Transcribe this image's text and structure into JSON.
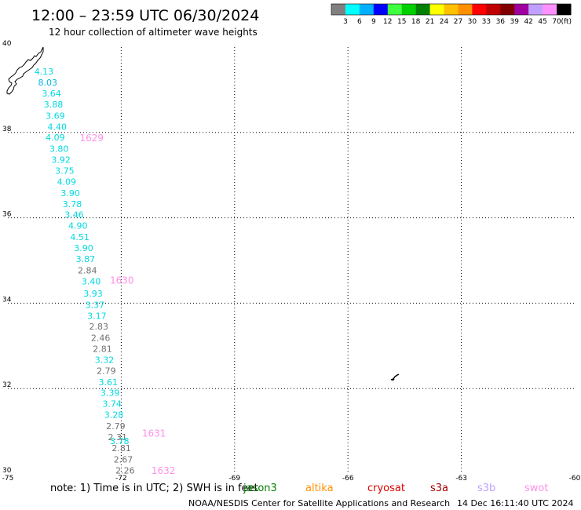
{
  "header": {
    "title": "12:00 – 23:59 UTC 06/30/2024",
    "subtitle": "12 hour collection of altimeter wave heights"
  },
  "legend": {
    "ticks": [
      "3",
      "6",
      "9",
      "12",
      "15",
      "18",
      "21",
      "24",
      "27",
      "30",
      "33",
      "36",
      "39",
      "42",
      "45",
      "70"
    ],
    "unit": "(ft)",
    "colors": [
      "#808080",
      "#00ffff",
      "#00b0ff",
      "#0000ff",
      "#40ff40",
      "#00d000",
      "#008000",
      "#ffff00",
      "#ffc000",
      "#ff9000",
      "#ff0000",
      "#c00000",
      "#800000",
      "#a000a0",
      "#c0a0ff",
      "#ff90ff",
      "#000000"
    ]
  },
  "map": {
    "lon_min": -75,
    "lon_max": -60,
    "lat_min": 30,
    "lat_max": 40,
    "lon_ticks": [
      "-75",
      "-72",
      "-69",
      "-66",
      "-63",
      "-60"
    ],
    "lon_tick_values": [
      -75,
      -72,
      -69,
      -66,
      -63,
      -60
    ],
    "lat_ticks": [
      "40",
      "38",
      "36",
      "34",
      "32",
      "30"
    ],
    "lat_tick_values": [
      40,
      38,
      36,
      34,
      32,
      30
    ],
    "observations": [
      {
        "text": "4.13",
        "lon": -74.3,
        "lat": 39.36,
        "color": "#00d8e0"
      },
      {
        "text": "8.03",
        "lon": -74.2,
        "lat": 39.1,
        "color": "#00b8e0"
      },
      {
        "text": "3.64",
        "lon": -74.1,
        "lat": 38.84,
        "color": "#00d8e0"
      },
      {
        "text": "3.88",
        "lon": -74.05,
        "lat": 38.58,
        "color": "#00d8e0"
      },
      {
        "text": "3.69",
        "lon": -74.0,
        "lat": 38.32,
        "color": "#00d8e0"
      },
      {
        "text": "4.40",
        "lon": -73.95,
        "lat": 38.06,
        "color": "#00d8e0"
      },
      {
        "text": "4.09",
        "lon": -74.0,
        "lat": 37.81,
        "color": "#00d8e0"
      },
      {
        "text": "3.80",
        "lon": -73.9,
        "lat": 37.55,
        "color": "#00d8e0"
      },
      {
        "text": "3.92",
        "lon": -73.85,
        "lat": 37.29,
        "color": "#00d8e0"
      },
      {
        "text": "3.75",
        "lon": -73.75,
        "lat": 37.03,
        "color": "#00d8e0"
      },
      {
        "text": "4.09",
        "lon": -73.7,
        "lat": 36.77,
        "color": "#00d8e0"
      },
      {
        "text": "3.90",
        "lon": -73.6,
        "lat": 36.51,
        "color": "#00d8e0"
      },
      {
        "text": "3.78",
        "lon": -73.55,
        "lat": 36.25,
        "color": "#00d8e0"
      },
      {
        "text": "3.46",
        "lon": -73.5,
        "lat": 36.0,
        "color": "#00d8e0"
      },
      {
        "text": "4.90",
        "lon": -73.4,
        "lat": 35.74,
        "color": "#00d8e0"
      },
      {
        "text": "4.51",
        "lon": -73.35,
        "lat": 35.48,
        "color": "#00d8e0"
      },
      {
        "text": "3.90",
        "lon": -73.25,
        "lat": 35.22,
        "color": "#00d8e0"
      },
      {
        "text": "3.87",
        "lon": -73.2,
        "lat": 34.96,
        "color": "#00d8e0"
      },
      {
        "text": "2.84",
        "lon": -73.15,
        "lat": 34.7,
        "color": "#707070"
      },
      {
        "text": "3.40",
        "lon": -73.05,
        "lat": 34.44,
        "color": "#00d8e0"
      },
      {
        "text": "3.93",
        "lon": -73.0,
        "lat": 34.15,
        "color": "#00d8e0"
      },
      {
        "text": "3.37",
        "lon": -72.95,
        "lat": 33.89,
        "color": "#00d8e0"
      },
      {
        "text": "3.17",
        "lon": -72.9,
        "lat": 33.63,
        "color": "#00d8e0"
      },
      {
        "text": "2.83",
        "lon": -72.85,
        "lat": 33.38,
        "color": "#707070"
      },
      {
        "text": "2.46",
        "lon": -72.8,
        "lat": 33.12,
        "color": "#707070"
      },
      {
        "text": "2.81",
        "lon": -72.75,
        "lat": 32.86,
        "color": "#707070"
      },
      {
        "text": "3.32",
        "lon": -72.7,
        "lat": 32.6,
        "color": "#00d8e0"
      },
      {
        "text": "2.79",
        "lon": -72.65,
        "lat": 32.34,
        "color": "#707070"
      },
      {
        "text": "3.61",
        "lon": -72.6,
        "lat": 32.08,
        "color": "#00d8e0"
      },
      {
        "text": "3.39",
        "lon": -72.55,
        "lat": 31.83,
        "color": "#00d8e0"
      },
      {
        "text": "3.74",
        "lon": -72.5,
        "lat": 31.57,
        "color": "#00d8e0"
      },
      {
        "text": "3.28",
        "lon": -72.45,
        "lat": 31.31,
        "color": "#00d8e0"
      },
      {
        "text": "2.79",
        "lon": -72.4,
        "lat": 31.05,
        "color": "#707070"
      },
      {
        "text": "2.31",
        "lon": -72.35,
        "lat": 30.79,
        "color": "#707070"
      },
      {
        "text": "3.78",
        "lon": -72.3,
        "lat": 30.7,
        "color": "#00d8e0"
      },
      {
        "text": "2.81",
        "lon": -72.25,
        "lat": 30.53,
        "color": "#707070"
      },
      {
        "text": "2.67",
        "lon": -72.2,
        "lat": 30.27,
        "color": "#707070"
      },
      {
        "text": "2.26",
        "lon": -72.15,
        "lat": 30.01,
        "color": "#707070"
      }
    ],
    "pass_labels": [
      {
        "text": "1629",
        "lon": -73.1,
        "lat": 37.79,
        "color": "#ff90e8"
      },
      {
        "text": "1630",
        "lon": -72.3,
        "lat": 34.46,
        "color": "#ff90e8"
      },
      {
        "text": "1631",
        "lon": -71.45,
        "lat": 30.87,
        "color": "#ff90e8"
      },
      {
        "text": "1632",
        "lon": -71.2,
        "lat": 30.0,
        "color": "#ff90e8"
      }
    ]
  },
  "footer": {
    "note": "note:  1) Time is in UTC; 2) SWH is in feet",
    "satellites": [
      {
        "name": "jason3",
        "color": "#008000"
      },
      {
        "name": "altika",
        "color": "#ff9000"
      },
      {
        "name": "cryosat",
        "color": "#e00000"
      },
      {
        "name": "s3a",
        "color": "#a00000"
      },
      {
        "name": "s3b",
        "color": "#c0a0ff"
      },
      {
        "name": "swot",
        "color": "#ff90e8"
      }
    ],
    "credit": "NOAA/NESDIS Center for Satellite Applications and Research",
    "timestamp": "14 Dec 16:11:40 UTC 2024"
  }
}
